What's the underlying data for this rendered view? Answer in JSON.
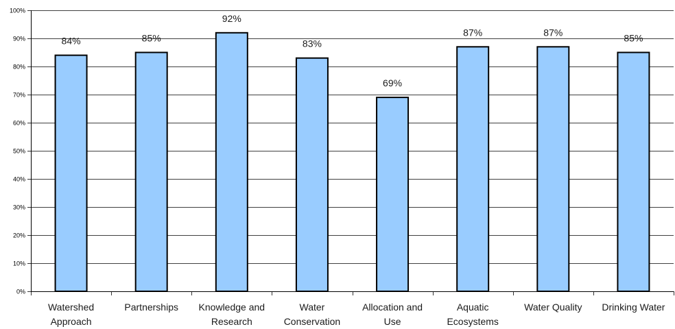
{
  "chart_data": {
    "type": "bar",
    "title": "",
    "xlabel": "",
    "ylabel": "",
    "ylim": [
      0,
      100
    ],
    "y_ticks": [
      "0%",
      "10%",
      "20%",
      "30%",
      "40%",
      "50%",
      "60%",
      "70%",
      "80%",
      "90%",
      "100%"
    ],
    "categories": [
      [
        "Watershed",
        "Approach"
      ],
      [
        "Partnerships"
      ],
      [
        "Knowledge and",
        "Research"
      ],
      [
        "Water",
        "Conservation"
      ],
      [
        "Allocation and",
        "Use"
      ],
      [
        "Aquatic",
        "Ecosystems"
      ],
      [
        "Water Quality"
      ],
      [
        "Drinking Water"
      ]
    ],
    "values": [
      84,
      85,
      92,
      83,
      69,
      87,
      87,
      85
    ],
    "data_labels": [
      "84%",
      "85%",
      "92%",
      "83%",
      "69%",
      "87%",
      "87%",
      "85%"
    ],
    "grid": true,
    "legend": "none",
    "colors": {
      "bar_fill": "#99ccff",
      "bar_stroke": "#000000",
      "grid": "#000000",
      "axis": "#000000"
    }
  }
}
